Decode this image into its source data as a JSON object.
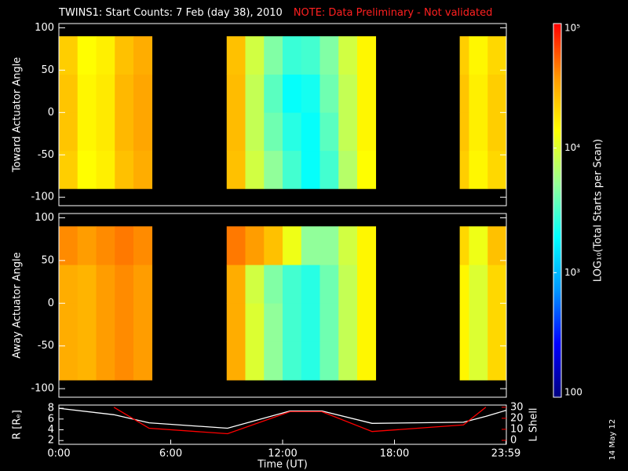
{
  "chart_data": [
    {
      "type": "heatmap",
      "title": "TWINS1: Start Counts:  7 Feb (day  38), 2010",
      "note": "NOTE: Data Preliminary - Not validated",
      "ylabel": "Toward Actuator Angle",
      "bins": [
        0,
        1,
        2,
        3,
        4,
        5,
        9,
        10,
        11,
        12,
        13,
        14,
        15,
        16,
        17,
        21.5,
        22,
        23,
        24
      ],
      "y_bins": [
        -90,
        -45,
        0,
        45,
        90
      ],
      "values": [
        [
          22000,
          14000,
          16000,
          25000,
          30000,
          null,
          25000,
          9000,
          5000,
          3000,
          2000,
          3000,
          7000,
          14000,
          null,
          22000,
          15000,
          20000
        ],
        [
          24000,
          15000,
          17000,
          27000,
          32000,
          null,
          26000,
          8000,
          4000,
          2500,
          2000,
          3500,
          8000,
          15000,
          null,
          24000,
          16000,
          22000
        ],
        [
          24000,
          15000,
          17000,
          27000,
          32000,
          null,
          26000,
          8000,
          3500,
          2000,
          2200,
          4000,
          8000,
          15000,
          null,
          24000,
          16000,
          22000
        ],
        [
          22000,
          14000,
          16000,
          25000,
          30000,
          null,
          25000,
          9000,
          4500,
          2800,
          3000,
          4500,
          9000,
          15000,
          null,
          22000,
          15000,
          20000
        ]
      ],
      "xlim": [
        0,
        24
      ],
      "ylim": [
        -110,
        105
      ],
      "yticks": [
        -100,
        -50,
        0,
        50,
        100
      ],
      "zlim": [
        100,
        100000
      ],
      "zticks": [
        100,
        {
          "value": 1000,
          "label": "10³"
        },
        {
          "value": 10000,
          "label": "10⁴"
        },
        {
          "value": 100000,
          "label": "10⁵"
        }
      ],
      "zlabel": "LOG₁₀(Total Starts per Scan)",
      "zlog": true,
      "colorscale": [
        "#00007f",
        "#0000ff",
        "#0096ff",
        "#00ffff",
        "#96ff96",
        "#ffff00",
        "#ff9600",
        "#ff0000"
      ]
    },
    {
      "type": "heatmap",
      "ylabel": "Away Actuator Angle",
      "bins": [
        0,
        1,
        2,
        3,
        4,
        5,
        9,
        10,
        11,
        12,
        13,
        14,
        15,
        16,
        17,
        21.5,
        22,
        23,
        24
      ],
      "y_bins": [
        -90,
        -45,
        0,
        45,
        90
      ],
      "values": [
        [
          30000,
          28000,
          35000,
          40000,
          35000,
          null,
          30000,
          10000,
          5000,
          3000,
          2500,
          4000,
          8000,
          15000,
          null,
          15000,
          10000,
          20000
        ],
        [
          30000,
          28000,
          35000,
          40000,
          35000,
          null,
          30000,
          10000,
          5000,
          3000,
          2500,
          4000,
          8000,
          15000,
          null,
          15000,
          10000,
          20000
        ],
        [
          30000,
          28000,
          35000,
          40000,
          35000,
          null,
          30000,
          9000,
          4500,
          3000,
          2500,
          4000,
          8000,
          15000,
          null,
          15000,
          10000,
          20000
        ],
        [
          40000,
          35000,
          40000,
          45000,
          40000,
          null,
          45000,
          35000,
          25000,
          12000,
          5000,
          5000,
          9000,
          15000,
          null,
          20000,
          12000,
          25000
        ]
      ],
      "xlim": [
        0,
        24
      ],
      "ylim": [
        -110,
        105
      ],
      "yticks": [
        -100,
        -50,
        0,
        50,
        100
      ]
    },
    {
      "type": "line",
      "xlabel": "Time (UT)",
      "ylabel": "R [Rₑ]",
      "y2label": "L Shell",
      "x": [
        0,
        2.95,
        4.84,
        9.05,
        12.4,
        14.1,
        16.8,
        21.7,
        22.9,
        23.98
      ],
      "series": [
        {
          "name": "R",
          "color": "#ffffff",
          "values": [
            8,
            6.8,
            5.3,
            4.3,
            7.5,
            7.5,
            5.2,
            5.4,
            6.5,
            7.6
          ]
        },
        {
          "name": "L Shell",
          "color": "#ff0000",
          "axis": "y2",
          "values": [
            null,
            30,
            11,
            6,
            26,
            26,
            8,
            14,
            30,
            null
          ]
        }
      ],
      "xlim": [
        0,
        24
      ],
      "xticks": [
        {
          "value": 0,
          "label": "0:00"
        },
        {
          "value": 6,
          "label": "6:00"
        },
        {
          "value": 12,
          "label": "12:00"
        },
        {
          "value": 18,
          "label": "18:00"
        },
        {
          "value": 23.98,
          "label": "23:59"
        }
      ],
      "ylim": [
        1.3,
        8.6
      ],
      "yticks": [
        2,
        4,
        6,
        8
      ],
      "y2lim": [
        -3.6,
        32
      ],
      "y2ticks": [
        0,
        10,
        20,
        30
      ]
    }
  ],
  "stamp": "14 May 12"
}
